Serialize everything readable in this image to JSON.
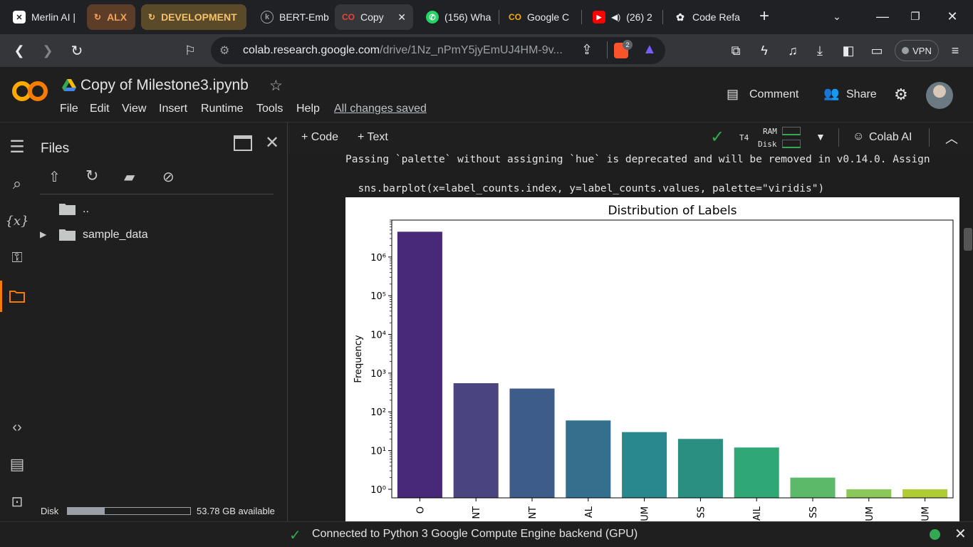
{
  "browser": {
    "tabs": [
      {
        "title": "Merlin AI |",
        "icon": "merlin-icon"
      },
      {
        "title": "ALX",
        "icon": "group-icon"
      },
      {
        "title": "DEVELOPMENT",
        "icon": "group-icon"
      },
      {
        "title": "BERT-Emb",
        "icon": "bert-icon"
      },
      {
        "title": "Copy",
        "icon": "colab-icon"
      },
      {
        "title": "(156) Wha",
        "icon": "whatsapp-icon"
      },
      {
        "title": "Google C",
        "icon": "colab-icon"
      },
      {
        "title": "(26) 2",
        "icon": "youtube-icon"
      },
      {
        "title": "Code Refa",
        "icon": "chatgpt-icon"
      }
    ],
    "url_host": "colab.research.google.com",
    "url_path": "/drive/1Nz_nPmY5jyEmUJ4HM-9v...",
    "vpn_label": "VPN",
    "brave_badge": "2"
  },
  "colab": {
    "notebook_title": "Copy of Milestone3.ipynb",
    "menu": [
      "File",
      "Edit",
      "View",
      "Insert",
      "Runtime",
      "Tools",
      "Help"
    ],
    "save_status": "All changes saved",
    "comment_label": "Comment",
    "share_label": "Share",
    "add_code": "+ Code",
    "add_text": "+ Text",
    "runtime_type": "T4",
    "ram_label": "RAM",
    "disk_label": "Disk",
    "colab_ai_label": "Colab AI"
  },
  "files_panel": {
    "title": "Files",
    "items": [
      {
        "name": ".."
      },
      {
        "name": "sample_data"
      }
    ],
    "disk_label": "Disk",
    "disk_available": "53.78 GB available",
    "disk_used_fraction": 0.3
  },
  "output": {
    "warning_line": "Passing `palette` without assigning `hue` is deprecated and will be removed in v0.14.0. Assign",
    "code_line": "  sns.barplot(x=label_counts.index, y=label_counts.values, palette=\"viridis\")"
  },
  "chart_data": {
    "type": "bar",
    "title": "Distribution of Labels",
    "ylabel": "Frequency",
    "xlabel": "",
    "y_scale": "log",
    "ylim": [
      0.6,
      9000000
    ],
    "y_tick_labels": [
      "10⁰",
      "10¹",
      "10²",
      "10³",
      "10⁴",
      "10⁵",
      "10⁶"
    ],
    "categories": [
      "O",
      "NT",
      "NT",
      "AL",
      "UM",
      "SS",
      "AIL",
      "SS",
      "UM",
      "UM"
    ],
    "values": [
      4500000,
      550,
      400,
      60,
      30,
      20,
      12,
      2,
      1,
      1
    ],
    "colors": [
      "#482878",
      "#4a4580",
      "#3e5c8a",
      "#34708d",
      "#29888e",
      "#2a8f80",
      "#2fa876",
      "#5db96a",
      "#8ac85a",
      "#b0cc35"
    ]
  },
  "status": {
    "text": "Connected to Python 3 Google Compute Engine backend (GPU)"
  }
}
